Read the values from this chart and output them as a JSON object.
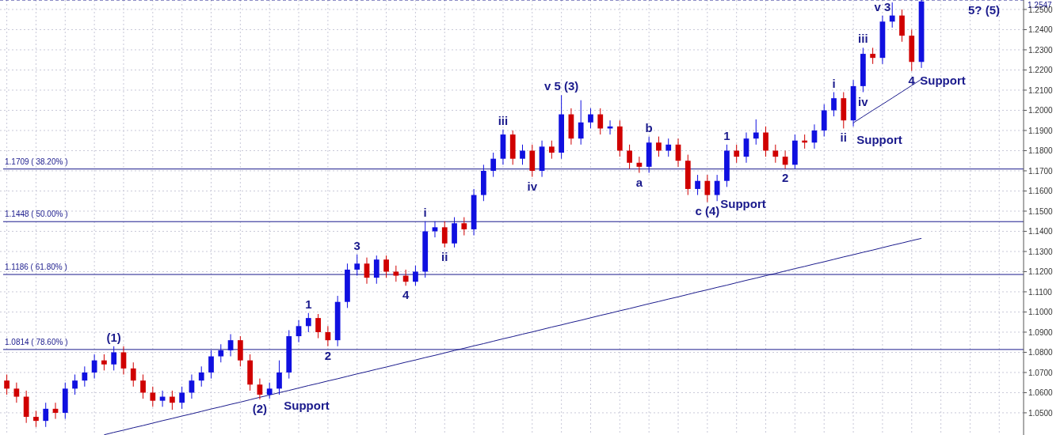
{
  "chart_data": {
    "type": "candlestick",
    "tick_labels": "y",
    "grid": true,
    "categories": [
      null,
      null,
      null,
      null,
      null,
      null,
      null,
      null,
      null,
      null,
      null,
      null,
      null,
      null,
      null,
      null,
      null,
      null,
      null,
      null,
      null,
      null,
      null,
      null,
      null,
      null,
      null,
      null,
      null,
      null,
      null,
      null,
      null,
      null,
      null,
      null,
      null,
      null,
      null,
      null,
      null,
      null,
      null,
      null,
      null,
      null,
      null,
      null,
      null,
      null,
      null,
      null,
      null,
      null,
      null,
      null,
      null,
      null,
      null,
      null,
      null,
      null,
      null,
      null,
      null,
      null,
      null,
      null,
      null,
      null,
      null,
      null,
      null,
      null,
      null,
      null,
      null,
      null,
      null,
      null,
      null,
      null,
      null,
      null,
      null,
      null,
      null,
      null,
      null,
      null,
      null,
      null,
      null,
      null,
      null
    ],
    "ohlc": [
      [
        1.066,
        1.069,
        1.059,
        1.062
      ],
      [
        1.062,
        1.065,
        1.055,
        1.058
      ],
      [
        1.058,
        1.061,
        1.045,
        1.048
      ],
      [
        1.048,
        1.051,
        1.043,
        1.046
      ],
      [
        1.046,
        1.055,
        1.043,
        1.052
      ],
      [
        1.052,
        1.055,
        1.047,
        1.05
      ],
      [
        1.05,
        1.065,
        1.047,
        1.062
      ],
      [
        1.062,
        1.069,
        1.059,
        1.066
      ],
      [
        1.066,
        1.073,
        1.063,
        1.07
      ],
      [
        1.07,
        1.079,
        1.067,
        1.076
      ],
      [
        1.076,
        1.079,
        1.071,
        1.074
      ],
      [
        1.074,
        1.083,
        1.071,
        1.08
      ],
      [
        1.08,
        1.083,
        1.069,
        1.072
      ],
      [
        1.072,
        1.075,
        1.063,
        1.066
      ],
      [
        1.066,
        1.069,
        1.057,
        1.06
      ],
      [
        1.06,
        1.063,
        1.053,
        1.056
      ],
      [
        1.056,
        1.061,
        1.053,
        1.058
      ],
      [
        1.058,
        1.061,
        1.0515,
        1.055
      ],
      [
        1.055,
        1.063,
        1.052,
        1.06
      ],
      [
        1.06,
        1.069,
        1.057,
        1.066
      ],
      [
        1.066,
        1.073,
        1.063,
        1.07
      ],
      [
        1.07,
        1.081,
        1.067,
        1.078
      ],
      [
        1.078,
        1.084,
        1.075,
        1.081
      ],
      [
        1.081,
        1.089,
        1.078,
        1.086
      ],
      [
        1.086,
        1.088,
        1.073,
        1.076
      ],
      [
        1.076,
        1.079,
        1.061,
        1.064
      ],
      [
        1.064,
        1.067,
        1.0567,
        1.059
      ],
      [
        1.059,
        1.065,
        1.057,
        1.062
      ],
      [
        1.062,
        1.076,
        1.059,
        1.07
      ],
      [
        1.07,
        1.091,
        1.067,
        1.088
      ],
      [
        1.088,
        1.096,
        1.085,
        1.093
      ],
      [
        1.093,
        1.0995,
        1.09,
        1.097
      ],
      [
        1.097,
        1.099,
        1.087,
        1.09
      ],
      [
        1.09,
        1.093,
        1.083,
        1.086
      ],
      [
        1.086,
        1.108,
        1.083,
        1.105
      ],
      [
        1.105,
        1.124,
        1.102,
        1.121
      ],
      [
        1.121,
        1.1285,
        1.118,
        1.124
      ],
      [
        1.124,
        1.127,
        1.114,
        1.117
      ],
      [
        1.117,
        1.128,
        1.114,
        1.126
      ],
      [
        1.126,
        1.128,
        1.117,
        1.12
      ],
      [
        1.12,
        1.123,
        1.115,
        1.118
      ],
      [
        1.118,
        1.121,
        1.113,
        1.115
      ],
      [
        1.115,
        1.123,
        1.113,
        1.12
      ],
      [
        1.12,
        1.145,
        1.117,
        1.14
      ],
      [
        1.14,
        1.145,
        1.137,
        1.142
      ],
      [
        1.142,
        1.145,
        1.132,
        1.134
      ],
      [
        1.134,
        1.147,
        1.132,
        1.144
      ],
      [
        1.144,
        1.147,
        1.138,
        1.141
      ],
      [
        1.141,
        1.161,
        1.138,
        1.158
      ],
      [
        1.158,
        1.173,
        1.155,
        1.17
      ],
      [
        1.17,
        1.179,
        1.167,
        1.176
      ],
      [
        1.176,
        1.1905,
        1.173,
        1.188
      ],
      [
        1.188,
        1.19,
        1.173,
        1.176
      ],
      [
        1.176,
        1.183,
        1.173,
        1.18
      ],
      [
        1.18,
        1.183,
        1.167,
        1.17
      ],
      [
        1.17,
        1.185,
        1.167,
        1.182
      ],
      [
        1.182,
        1.185,
        1.176,
        1.179
      ],
      [
        1.179,
        1.2075,
        1.176,
        1.198
      ],
      [
        1.198,
        1.201,
        1.183,
        1.186
      ],
      [
        1.186,
        1.205,
        1.183,
        1.194
      ],
      [
        1.194,
        1.201,
        1.191,
        1.198
      ],
      [
        1.198,
        1.201,
        1.188,
        1.191
      ],
      [
        1.191,
        1.195,
        1.188,
        1.192
      ],
      [
        1.192,
        1.195,
        1.177,
        1.18
      ],
      [
        1.18,
        1.183,
        1.171,
        1.174
      ],
      [
        1.174,
        1.177,
        1.169,
        1.172
      ],
      [
        1.172,
        1.187,
        1.169,
        1.184
      ],
      [
        1.184,
        1.187,
        1.177,
        1.18
      ],
      [
        1.18,
        1.186,
        1.177,
        1.183
      ],
      [
        1.183,
        1.186,
        1.172,
        1.175
      ],
      [
        1.175,
        1.178,
        1.158,
        1.161
      ],
      [
        1.161,
        1.168,
        1.158,
        1.165
      ],
      [
        1.165,
        1.168,
        1.1545,
        1.158
      ],
      [
        1.158,
        1.168,
        1.155,
        1.165
      ],
      [
        1.165,
        1.183,
        1.162,
        1.18
      ],
      [
        1.18,
        1.183,
        1.174,
        1.177
      ],
      [
        1.177,
        1.189,
        1.174,
        1.186
      ],
      [
        1.186,
        1.1955,
        1.183,
        1.189
      ],
      [
        1.189,
        1.192,
        1.177,
        1.18
      ],
      [
        1.18,
        1.183,
        1.174,
        1.177
      ],
      [
        1.177,
        1.18,
        1.171,
        1.173
      ],
      [
        1.173,
        1.188,
        1.171,
        1.185
      ],
      [
        1.185,
        1.188,
        1.181,
        1.184
      ],
      [
        1.184,
        1.193,
        1.181,
        1.19
      ],
      [
        1.19,
        1.203,
        1.187,
        1.2
      ],
      [
        1.2,
        1.209,
        1.197,
        1.206
      ],
      [
        1.206,
        1.209,
        1.191,
        1.195
      ],
      [
        1.195,
        1.215,
        1.192,
        1.212
      ],
      [
        1.212,
        1.231,
        1.209,
        1.228
      ],
      [
        1.228,
        1.231,
        1.223,
        1.226
      ],
      [
        1.226,
        1.247,
        1.223,
        1.244
      ],
      [
        1.244,
        1.2535,
        1.241,
        1.247
      ],
      [
        1.247,
        1.25,
        1.234,
        1.237
      ],
      [
        1.237,
        1.24,
        1.2195,
        1.224
      ],
      [
        1.224,
        1.2547,
        1.221,
        1.254
      ]
    ],
    "series": [
      {
        "type": "line",
        "color": "#1a1a8c",
        "values": [
          null,
          null,
          null,
          null,
          null,
          null,
          null,
          null,
          null,
          null,
          1.0391,
          1.0403,
          1.0414,
          1.0426,
          1.0437,
          1.0449,
          1.0461,
          1.0472,
          1.0484,
          1.0495,
          1.0507,
          1.0519,
          1.053,
          1.0542,
          1.0553,
          1.0565,
          1.0577,
          1.0588,
          1.06,
          1.0611,
          1.0623,
          1.0635,
          1.0646,
          1.0658,
          1.0669,
          1.0681,
          1.0693,
          1.0704,
          1.0716,
          1.0727,
          1.0739,
          1.0751,
          1.0762,
          1.0774,
          1.0785,
          1.0797,
          1.0809,
          1.082,
          1.0832,
          1.0843,
          1.0855,
          1.0867,
          1.0878,
          1.089,
          1.0901,
          1.0913,
          1.0925,
          1.0936,
          1.0948,
          1.0959,
          1.0971,
          1.0983,
          1.0994,
          1.1006,
          1.1017,
          1.1029,
          1.1041,
          1.1052,
          1.1064,
          1.1075,
          1.1087,
          1.1099,
          1.111,
          1.1122,
          1.1133,
          1.1145,
          1.1157,
          1.1168,
          1.118,
          1.1191,
          1.1203,
          1.1215,
          1.1226,
          1.1238,
          1.1249,
          1.1261,
          1.1273,
          1.1284,
          1.1296,
          1.1307,
          1.1319,
          1.1331,
          1.1342,
          1.1354,
          1.1365
        ]
      },
      {
        "type": "line",
        "color": "#1a1a8c",
        "values": [
          null,
          null,
          null,
          null,
          null,
          null,
          null,
          null,
          null,
          null,
          null,
          null,
          null,
          null,
          null,
          null,
          null,
          null,
          null,
          null,
          null,
          null,
          null,
          null,
          null,
          null,
          null,
          null,
          null,
          null,
          null,
          null,
          null,
          null,
          null,
          null,
          null,
          null,
          null,
          null,
          null,
          null,
          null,
          null,
          null,
          null,
          null,
          null,
          null,
          null,
          null,
          null,
          null,
          null,
          null,
          null,
          null,
          null,
          null,
          null,
          null,
          null,
          null,
          null,
          null,
          null,
          null,
          null,
          null,
          null,
          null,
          null,
          null,
          null,
          null,
          null,
          null,
          null,
          null,
          null,
          null,
          null,
          null,
          null,
          null,
          null,
          null,
          1.1938,
          1.1969,
          1.2,
          1.203,
          1.2061,
          1.2092,
          1.2123,
          1.2154
        ]
      }
    ],
    "ylim": [
      1.039,
      1.2547
    ],
    "yticks": [
      {
        "value": 1.05,
        "label": "1.0500"
      },
      {
        "value": 1.06,
        "label": "1.0600"
      },
      {
        "value": 1.07,
        "label": "1.0700"
      },
      {
        "value": 1.08,
        "label": "1.0800"
      },
      {
        "value": 1.09,
        "label": "1.0900"
      },
      {
        "value": 1.1,
        "label": "1.1000"
      },
      {
        "value": 1.11,
        "label": "1.1100"
      },
      {
        "value": 1.12,
        "label": "1.1200"
      },
      {
        "value": 1.13,
        "label": "1.1300"
      },
      {
        "value": 1.14,
        "label": "1.1400"
      },
      {
        "value": 1.15,
        "label": "1.1500"
      },
      {
        "value": 1.16,
        "label": "1.1600"
      },
      {
        "value": 1.17,
        "label": "1.1700"
      },
      {
        "value": 1.18,
        "label": "1.1800"
      },
      {
        "value": 1.19,
        "label": "1.1900"
      },
      {
        "value": 1.2,
        "label": "1.2000"
      },
      {
        "value": 1.21,
        "label": "1.2100"
      },
      {
        "value": 1.22,
        "label": "1.2200"
      },
      {
        "value": 1.23,
        "label": "1.2300"
      },
      {
        "value": 1.24,
        "label": "1.2400"
      },
      {
        "value": 1.25,
        "label": "1.2500"
      }
    ],
    "ref_lines": [
      {
        "axis": "y",
        "value": 1.1709,
        "label": "1.1709 ( 38.20% )",
        "color": "#1a1a8c"
      },
      {
        "axis": "y",
        "value": 1.1448,
        "label": "1.1448 ( 50.00% )",
        "color": "#1a1a8c"
      },
      {
        "axis": "y",
        "value": 1.1186,
        "label": "1.1186 ( 61.80% )",
        "color": "#1a1a8c"
      },
      {
        "axis": "y",
        "value": 1.0814,
        "label": "1.0814 ( 78.60% )",
        "color": "#1a1a8c"
      },
      {
        "axis": "y",
        "value": 1.2547,
        "label": "1.2547",
        "color": "#1a1a8c",
        "line_style": "dashed"
      }
    ],
    "annotations": [
      {
        "text": "(1)",
        "y": 1.083
      },
      {
        "text": "(2)",
        "y": 1.0567
      },
      "Support",
      {
        "text": "1",
        "y": 1.0995
      },
      {
        "text": "2",
        "y": 1.083
      },
      {
        "text": "3",
        "y": 1.1285
      },
      {
        "text": "4",
        "y": 1.113
      },
      {
        "text": "i",
        "y": 1.145
      },
      {
        "text": "ii",
        "y": 1.132
      },
      {
        "text": "iii",
        "y": 1.1905
      },
      {
        "text": "iv",
        "y": 1.167
      },
      {
        "text": "v 5 (3)",
        "y": 1.2075
      },
      {
        "text": "a",
        "y": 1.169
      },
      {
        "text": "b",
        "y": 1.187
      },
      {
        "text": "c (4)",
        "y": 1.1545
      },
      "Support",
      {
        "text": "1",
        "y": 1.183
      },
      {
        "text": "2",
        "y": 1.171
      },
      {
        "text": "i",
        "y": 1.209
      },
      {
        "text": "ii",
        "y": 1.191
      },
      "Support",
      {
        "text": "iii",
        "y": 1.231
      },
      {
        "text": "iv",
        "y": 1.209
      },
      {
        "text": "v 3",
        "y": 1.247
      },
      {
        "text": "4",
        "y": 1.2195
      },
      "Support",
      "5? (5)"
    ]
  }
}
